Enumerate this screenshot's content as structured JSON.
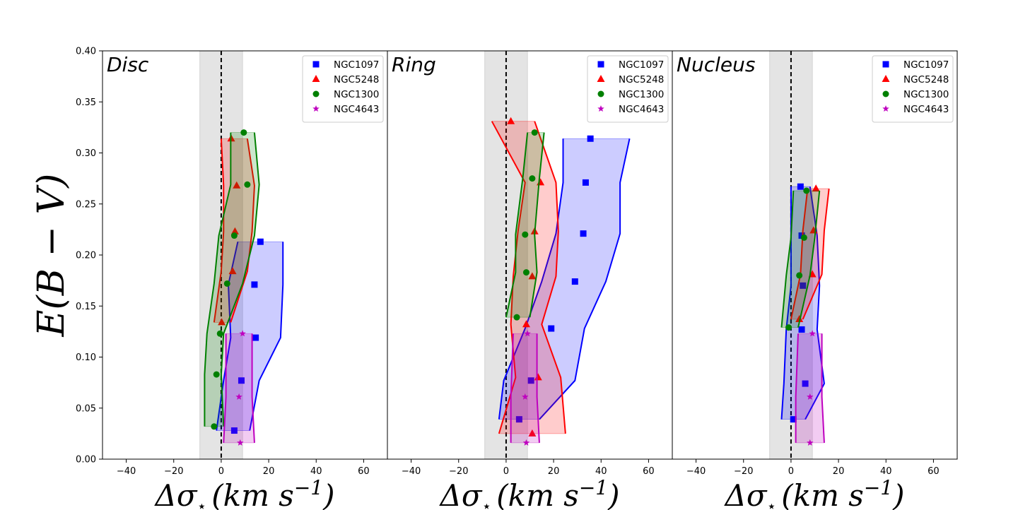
{
  "chart_data": {
    "type": "scatter",
    "ylabel": {
      "main": "E(B − V)"
    },
    "xlabel": {
      "delta": "Δσ",
      "star": "⋆",
      "unit": "(km s",
      "exp": "−1",
      "close": ")"
    },
    "xlim": [
      -50,
      70
    ],
    "ylim": [
      0,
      0.4
    ],
    "xticks": [
      -40,
      -20,
      0,
      20,
      40,
      60
    ],
    "xtick_labels": [
      "−40",
      "−20",
      "0",
      "20",
      "40",
      "60"
    ],
    "yticks": [
      0,
      0.05,
      0.1,
      0.15,
      0.2,
      0.25,
      0.3,
      0.35,
      0.4
    ],
    "ytick_labels": [
      "0.00",
      "0.05",
      "0.10",
      "0.15",
      "0.20",
      "0.25",
      "0.30",
      "0.35",
      "0.40"
    ],
    "shaded_band_x": [
      -9,
      9
    ],
    "reference_line_x": 0,
    "legend_location": "upper right",
    "series_styles": [
      {
        "name": "NGC1097",
        "color": "#0000ff",
        "marker": "square"
      },
      {
        "name": "NGC5248",
        "color": "#ff0000",
        "marker": "triangle"
      },
      {
        "name": "NGC1300",
        "color": "#008000",
        "marker": "circle"
      },
      {
        "name": "NGC4643",
        "color": "#bf00bf",
        "marker": "star"
      }
    ],
    "panels": [
      {
        "title": "Disc",
        "series": [
          {
            "name": "NGC1097",
            "x": [
              5.5,
              8.5,
              14.5,
              14,
              16.5
            ],
            "y": [
              0.028,
              0.077,
              0.119,
              0.171,
              0.213
            ],
            "lo": [
              -2,
              1,
              4,
              3,
              7
            ],
            "hi": [
              12,
              16,
              25,
              26,
              26
            ]
          },
          {
            "name": "NGC5248",
            "x": [
              0.2,
              4.8,
              5.8,
              6.5,
              4.2
            ],
            "y": [
              0.134,
              0.184,
              0.223,
              0.268,
              0.314
            ],
            "lo": [
              -3,
              0,
              1,
              1,
              0
            ],
            "hi": [
              4,
              11,
              13,
              14,
              11
            ]
          },
          {
            "name": "NGC1300",
            "x": [
              -3,
              -2,
              -0.5,
              2.5,
              5.5,
              11,
              9.5
            ],
            "y": [
              0.032,
              0.083,
              0.123,
              0.172,
              0.219,
              0.269,
              0.32
            ],
            "lo": [
              -7,
              -7,
              -6,
              -3,
              -1,
              4,
              4
            ],
            "hi": [
              1,
              0,
              1,
              9,
              14,
              16,
              14
            ]
          },
          {
            "name": "NGC4643",
            "x": [
              8,
              7.5,
              9
            ],
            "y": [
              0.016,
              0.061,
              0.123
            ],
            "lo": [
              1,
              2,
              2
            ],
            "hi": [
              14,
              13,
              13
            ]
          }
        ]
      },
      {
        "title": "Ring",
        "series": [
          {
            "name": "NGC1097",
            "x": [
              5.5,
              10.5,
              19,
              29,
              32.5,
              33.5,
              35.5
            ],
            "y": [
              0.039,
              0.077,
              0.128,
              0.174,
              0.221,
              0.271,
              0.314
            ],
            "lo": [
              -3,
              -1,
              8,
              15,
              21,
              24,
              24
            ],
            "hi": [
              14,
              29,
              33,
              42,
              48,
              48,
              52
            ]
          },
          {
            "name": "NGC5248",
            "x": [
              11,
              13.5,
              8.5,
              11,
              12,
              14.5,
              2
            ],
            "y": [
              0.025,
              0.08,
              0.132,
              0.179,
              0.223,
              0.271,
              0.331
            ],
            "lo": [
              -3,
              4,
              2,
              3,
              5,
              8,
              -6
            ],
            "hi": [
              25,
              23,
              15,
              21,
              22,
              21,
              12
            ]
          },
          {
            "name": "NGC1300",
            "x": [
              4.5,
              8.5,
              8,
              11,
              12
            ],
            "y": [
              0.139,
              0.183,
              0.22,
              0.275,
              0.32
            ],
            "lo": [
              0,
              4,
              4,
              7,
              9
            ],
            "hi": [
              10,
              13,
              12,
              14,
              16
            ]
          },
          {
            "name": "NGC4643",
            "x": [
              8.5,
              8,
              9
            ],
            "y": [
              0.016,
              0.061,
              0.123
            ],
            "lo": [
              2,
              2,
              3
            ],
            "hi": [
              14,
              13,
              13
            ]
          }
        ]
      },
      {
        "title": "Nucleus",
        "series": [
          {
            "name": "NGC1097",
            "x": [
              1,
              6,
              4.5,
              5,
              4.5,
              4
            ],
            "y": [
              0.039,
              0.074,
              0.127,
              0.17,
              0.219,
              0.267
            ],
            "lo": [
              -4,
              -3,
              -2,
              0,
              0,
              0
            ],
            "hi": [
              6,
              14,
              11,
              12,
              11,
              8
            ]
          },
          {
            "name": "NGC5248",
            "x": [
              3.5,
              9,
              9.5,
              10.5
            ],
            "y": [
              0.137,
              0.181,
              0.224,
              0.265
            ],
            "lo": [
              0,
              4,
              5,
              7
            ],
            "hi": [
              5,
              13,
              14,
              16
            ]
          },
          {
            "name": "NGC1300",
            "x": [
              -1,
              3.5,
              5.5,
              6.5
            ],
            "y": [
              0.129,
              0.18,
              0.217,
              0.263
            ],
            "lo": [
              -4,
              -2,
              0,
              1
            ],
            "hi": [
              3,
              8,
              10,
              12
            ]
          },
          {
            "name": "NGC4643",
            "x": [
              8,
              8,
              9
            ],
            "y": [
              0.016,
              0.061,
              0.123
            ],
            "lo": [
              2,
              2,
              3
            ],
            "hi": [
              14,
              13,
              13
            ]
          }
        ]
      }
    ]
  }
}
